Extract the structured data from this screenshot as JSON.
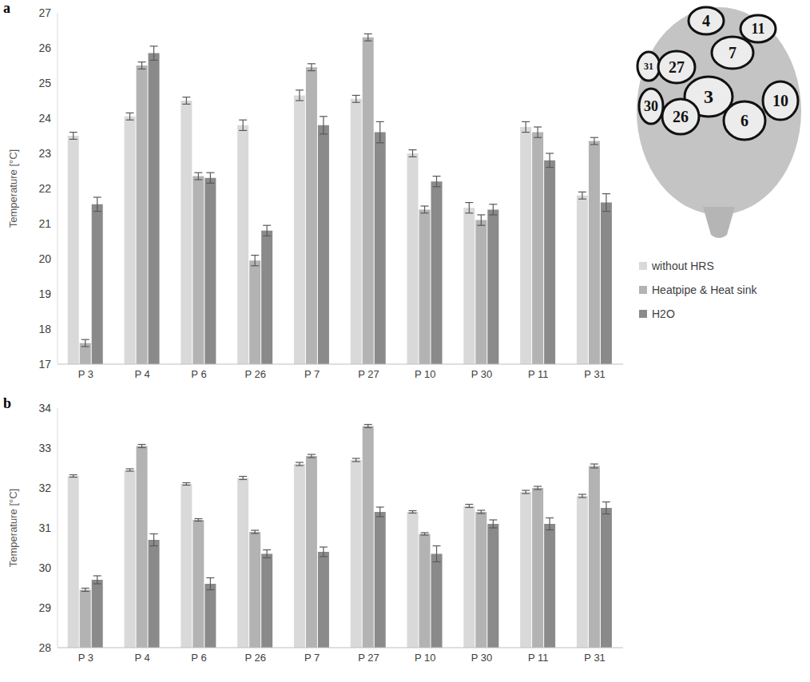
{
  "chart_data": [
    {
      "type": "bar",
      "title": "a",
      "y_label": "Temperature [°C]",
      "categories": [
        "P 3",
        "P 4",
        "P 6",
        "P 26",
        "P 7",
        "P 27",
        "P 10",
        "P 30",
        "P 11",
        "P 31"
      ],
      "series": [
        {
          "name": "without HRS",
          "color": "#d9d9d9",
          "values": [
            23.5,
            24.05,
            24.5,
            23.8,
            24.65,
            24.55,
            23.0,
            21.45,
            23.75,
            21.8
          ],
          "errors": [
            0.1,
            0.1,
            0.1,
            0.15,
            0.15,
            0.1,
            0.1,
            0.15,
            0.15,
            0.1
          ]
        },
        {
          "name": "Heatpipe & Heat sink",
          "color": "#b3b3b3",
          "values": [
            17.6,
            25.5,
            22.35,
            19.95,
            25.45,
            26.3,
            21.4,
            21.1,
            23.6,
            23.35
          ],
          "errors": [
            0.1,
            0.1,
            0.1,
            0.15,
            0.1,
            0.1,
            0.1,
            0.15,
            0.15,
            0.1
          ]
        },
        {
          "name": "H2O",
          "color": "#8a8a8a",
          "values": [
            21.55,
            25.85,
            22.3,
            20.8,
            23.8,
            23.6,
            22.2,
            21.4,
            22.8,
            21.6
          ],
          "errors": [
            0.2,
            0.2,
            0.15,
            0.15,
            0.25,
            0.3,
            0.15,
            0.15,
            0.2,
            0.25
          ]
        }
      ],
      "ylim": [
        17,
        27
      ],
      "yticks": [
        17,
        18,
        19,
        20,
        21,
        22,
        23,
        24,
        25,
        26,
        27
      ],
      "grid": false,
      "legend": "right"
    },
    {
      "type": "bar",
      "title": "b",
      "y_label": "Temperature [°C]",
      "categories": [
        "P 3",
        "P 4",
        "P 6",
        "P 26",
        "P 7",
        "P 27",
        "P 10",
        "P 30",
        "P 11",
        "P 31"
      ],
      "series": [
        {
          "name": "without HRS",
          "color": "#d9d9d9",
          "values": [
            32.3,
            32.45,
            32.1,
            32.25,
            32.6,
            32.7,
            31.4,
            31.55,
            31.9,
            31.8
          ],
          "errors": [
            0.03,
            0.03,
            0.03,
            0.04,
            0.04,
            0.04,
            0.03,
            0.04,
            0.04,
            0.04
          ]
        },
        {
          "name": "Heatpipe & Heat sink",
          "color": "#b3b3b3",
          "values": [
            29.45,
            33.05,
            31.2,
            30.9,
            32.8,
            33.55,
            30.85,
            31.4,
            32.0,
            32.55
          ],
          "errors": [
            0.04,
            0.04,
            0.03,
            0.04,
            0.04,
            0.04,
            0.03,
            0.04,
            0.04,
            0.05
          ]
        },
        {
          "name": "H2O",
          "color": "#8a8a8a",
          "values": [
            29.7,
            30.7,
            29.6,
            30.35,
            30.4,
            31.4,
            30.35,
            31.1,
            31.1,
            31.5
          ],
          "errors": [
            0.1,
            0.15,
            0.15,
            0.1,
            0.12,
            0.12,
            0.2,
            0.1,
            0.15,
            0.15
          ]
        }
      ],
      "ylim": [
        28,
        34
      ],
      "yticks": [
        28,
        29,
        30,
        31,
        32,
        33,
        34
      ],
      "grid": false
    }
  ],
  "head_diagram": {
    "labels": [
      "4",
      "11",
      "31",
      "27",
      "7",
      "3",
      "10",
      "30",
      "26",
      "6"
    ]
  }
}
